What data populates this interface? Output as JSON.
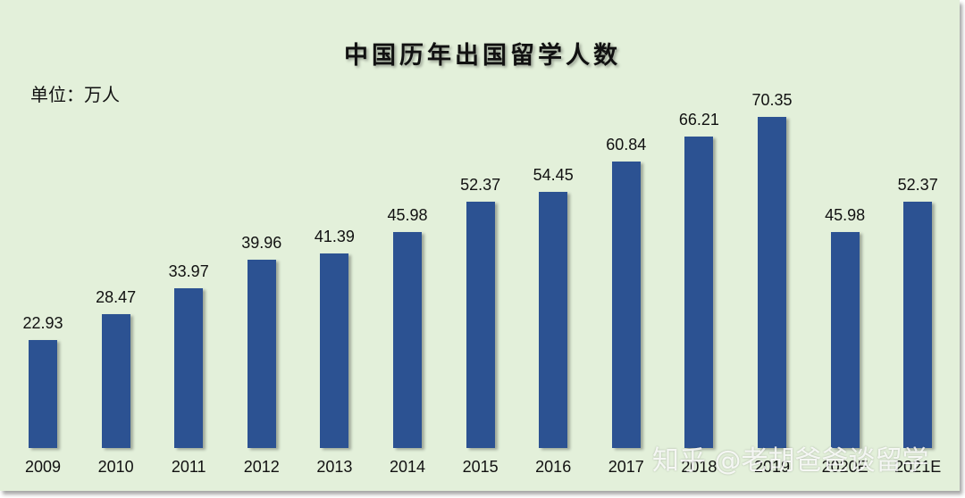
{
  "chart_data": {
    "type": "bar",
    "title": "中国历年出国留学人数",
    "unit_label": "单位：万人",
    "xlabel": "",
    "ylabel": "万人",
    "categories": [
      "2009",
      "2010",
      "2011",
      "2012",
      "2013",
      "2014",
      "2015",
      "2016",
      "2017",
      "2018",
      "2019",
      "2020E",
      "2021E"
    ],
    "values": [
      22.93,
      28.47,
      33.97,
      39.96,
      41.39,
      45.98,
      52.37,
      54.45,
      60.84,
      66.21,
      70.35,
      45.98,
      52.37
    ],
    "value_labels": [
      "22.93",
      "28.47",
      "33.97",
      "39.96",
      "41.39",
      "45.98",
      "52.37",
      "54.45",
      "60.84",
      "66.21",
      "70.35",
      "45.98",
      "52.37"
    ],
    "bar_color": "#2c5292",
    "background_color": "#e3f0da",
    "grid": false,
    "legend": "none",
    "ylim": [
      0,
      75
    ]
  },
  "watermark": "知乎 @老胡爸爸谈留学"
}
